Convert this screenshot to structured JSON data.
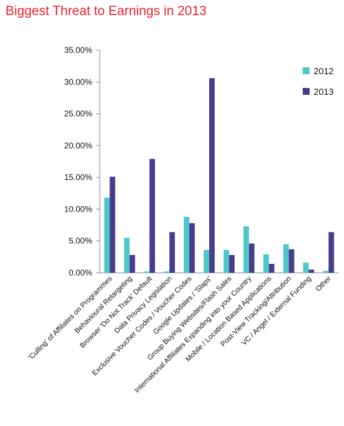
{
  "chart_data": {
    "type": "bar",
    "title": "Biggest Threat to Earnings in 2013",
    "xlabel": "",
    "ylabel": "",
    "ylim": [
      0,
      35
    ],
    "yticks": [
      "0.00%",
      "5.00%",
      "10.00%",
      "15.00%",
      "20.00%",
      "25.00%",
      "30.00%",
      "35.00%"
    ],
    "categories": [
      "'Culling' of Affiliates on Programmes",
      "Behavioural Retargeting",
      "Browser 'Do Not Track' Default",
      "Data Privacy Legislation",
      "Exclusive Voucher Codes / Voucher Codes",
      "Google Updates / 'Slaps'",
      "Group Buying Websites/Flash Sales",
      "International Affiliates Expanding into your Country",
      "Mobile / Location Based Applications",
      "Post-View Tracking/Attribution",
      "VC / Angel / External Funding",
      "Other"
    ],
    "series": [
      {
        "name": "2012",
        "color": "#4fc7c9",
        "values": [
          11.8,
          5.5,
          0.2,
          0.2,
          8.8,
          3.6,
          3.6,
          7.3,
          2.9,
          4.5,
          1.6,
          0.3
        ]
      },
      {
        "name": "2013",
        "color": "#473d8c",
        "values": [
          15.1,
          2.8,
          17.9,
          6.4,
          7.8,
          30.6,
          2.8,
          4.6,
          1.4,
          3.7,
          0.5,
          6.4
        ]
      }
    ],
    "grid": false,
    "legend_position": "top-right"
  }
}
